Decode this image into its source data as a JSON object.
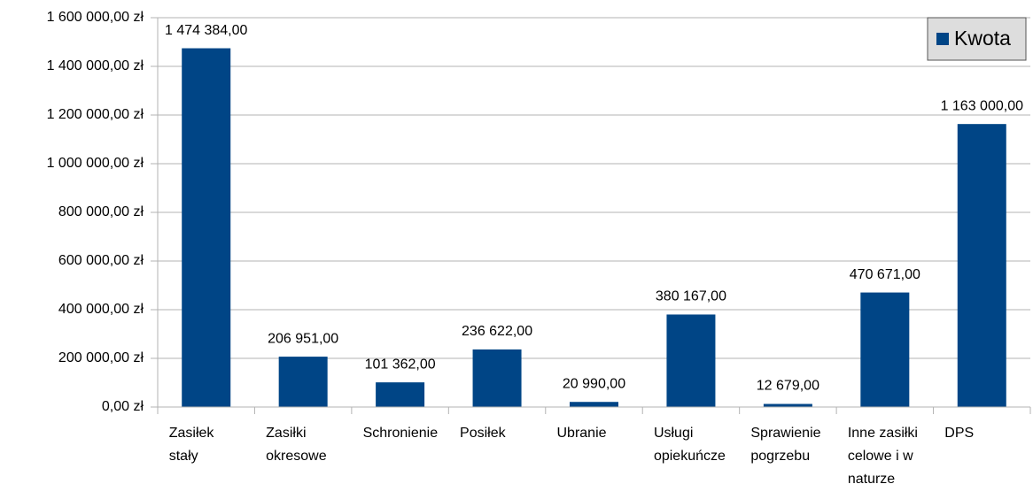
{
  "chart_data": {
    "type": "bar",
    "categories": [
      "Zasiłek stały",
      "Zasiłki okresowe",
      "Schronienie",
      "Posiłek",
      "Ubranie",
      "Usługi opiekuńcze",
      "Sprawienie pogrzebu",
      "Inne zasiłki celowe i w naturze",
      "DPS"
    ],
    "series": [
      {
        "name": "Kwota",
        "color": "#004586",
        "values": [
          1474384,
          206951,
          101362,
          236622,
          20990,
          380167,
          12679,
          470671,
          1163000
        ],
        "value_labels": [
          "1 474 384,00",
          "206 951,00",
          "101 362,00",
          "236 622,00",
          "20 990,00",
          "380 167,00",
          "12 679,00",
          "470 671,00",
          "1 163 000,00"
        ]
      }
    ],
    "ylim": [
      0,
      1600000
    ],
    "yticks": [
      {
        "value": 0,
        "label": "0,00 zł"
      },
      {
        "value": 200000,
        "label": "200 000,00 zł"
      },
      {
        "value": 400000,
        "label": "400 000,00 zł"
      },
      {
        "value": 600000,
        "label": "600 000,00 zł"
      },
      {
        "value": 800000,
        "label": "800 000,00 zł"
      },
      {
        "value": 1000000,
        "label": "1 000 000,00 zł"
      },
      {
        "value": 1200000,
        "label": "1 200 000,00 zł"
      },
      {
        "value": 1400000,
        "label": "1 400 000,00 zł"
      },
      {
        "value": 1600000,
        "label": "1 600 000,00 zł"
      }
    ],
    "grid": true,
    "legend": "top-right"
  }
}
